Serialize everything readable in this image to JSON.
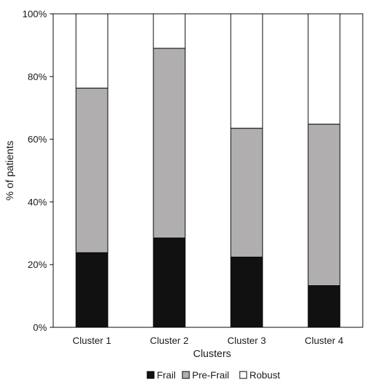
{
  "chart_data": {
    "type": "bar",
    "stacked": true,
    "categories": [
      "Cluster 1",
      "Cluster 2",
      "Cluster 3",
      "Cluster 4"
    ],
    "series": [
      {
        "name": "Frail",
        "color": "#111111",
        "values": [
          23.8,
          28.5,
          22.4,
          13.3
        ]
      },
      {
        "name": "Pre-Frail",
        "color": "#b0aeae",
        "values": [
          52.5,
          60.5,
          41.1,
          51.5
        ]
      },
      {
        "name": "Robust",
        "color": "#ffffff",
        "values": [
          23.7,
          11.0,
          36.5,
          35.2
        ]
      }
    ],
    "xlabel": "Clusters",
    "ylabel": "% of patients",
    "ylim": [
      0,
      100
    ],
    "yticks": [
      0,
      20,
      40,
      60,
      80,
      100
    ],
    "ytick_labels": [
      "0%",
      "20%",
      "40%",
      "60%",
      "80%",
      "100%"
    ],
    "grid": false,
    "legend_position": "bottom"
  }
}
